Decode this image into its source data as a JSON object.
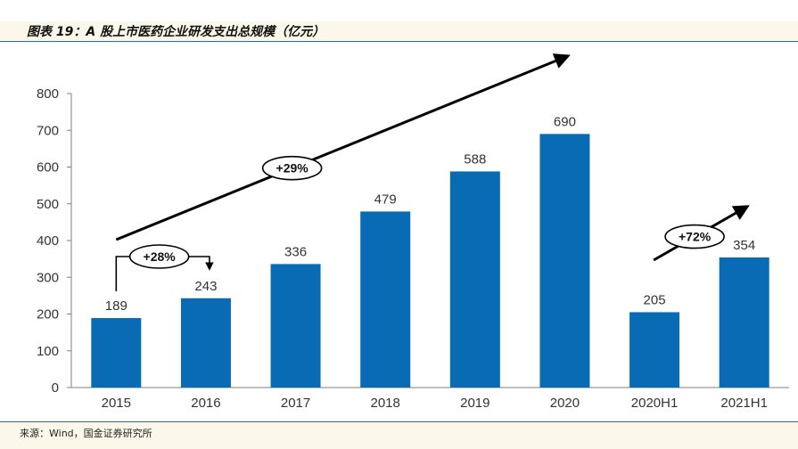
{
  "title": "图表 19：A 股上市医药企业研发支出总规模（亿元）",
  "source": "来源：Wind，国金证券研究所",
  "colors": {
    "bar": "#0a6bb5",
    "accent": "#1f6fb5",
    "band": "#fbf7e9"
  },
  "chart_data": {
    "type": "bar",
    "categories": [
      "2015",
      "2016",
      "2017",
      "2018",
      "2019",
      "2020",
      "2020H1",
      "2021H1"
    ],
    "values": [
      189,
      243,
      336,
      479,
      588,
      690,
      205,
      354
    ],
    "ylim": [
      0,
      800
    ],
    "yticks": [
      0,
      100,
      200,
      300,
      400,
      500,
      600,
      700,
      800
    ],
    "grid": false,
    "annotations": [
      {
        "label": "+28%",
        "from": "2015",
        "to": "2016"
      },
      {
        "label": "+29%",
        "from": "2015",
        "to": "2020"
      },
      {
        "label": "+72%",
        "from": "2020H1",
        "to": "2021H1"
      }
    ]
  }
}
